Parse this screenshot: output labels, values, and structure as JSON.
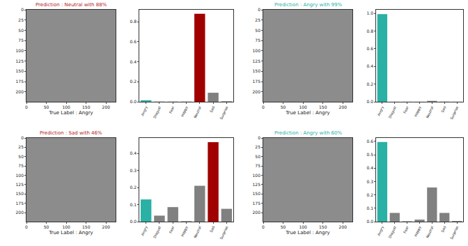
{
  "chart_data": [
    {
      "type": "image",
      "title": "Prediction : Neutral with 88%",
      "color": "#b22222",
      "x_label": "True Label : Angry",
      "xlim": [
        0,
        224
      ],
      "xticks": [
        0,
        50,
        100,
        150,
        200
      ],
      "ylim": [
        224,
        0
      ],
      "yticks": [
        0,
        25,
        50,
        75,
        100,
        125,
        150,
        175,
        200
      ]
    },
    {
      "type": "bar",
      "categories": [
        "Angry",
        "Disgust",
        "Fear",
        "Happy",
        "Neutral",
        "Sad",
        "Surprise"
      ],
      "values": [
        0.015,
        0.002,
        0.002,
        0.002,
        0.88,
        0.09,
        0.005
      ],
      "colors": [
        "#2ab0a4",
        "#808080",
        "#808080",
        "#808080",
        "#a00000",
        "#808080",
        "#808080"
      ],
      "ylim": [
        0,
        0.92
      ],
      "yticks": [
        {
          "value": 0,
          "label": "0.0"
        },
        0.2,
        0.4,
        0.6,
        0.8
      ]
    },
    {
      "type": "image",
      "title": "Prediction : Angry with 99%",
      "color": "#2ab0a4",
      "x_label": "True Label : Angry",
      "xlim": [
        0,
        224
      ],
      "xticks": [
        0,
        50,
        100,
        150,
        200
      ],
      "ylim": [
        224,
        0
      ],
      "yticks": [
        0,
        25,
        50,
        75,
        100,
        125,
        150,
        175,
        200
      ]
    },
    {
      "type": "bar",
      "categories": [
        "Angry",
        "Disgust",
        "Fear",
        "Happy",
        "Neutral",
        "Sad",
        "Surprise"
      ],
      "values": [
        0.99,
        0.001,
        0.001,
        0.001,
        0.01,
        0.002,
        0.001
      ],
      "colors": [
        "#2ab0a4",
        "#808080",
        "#808080",
        "#808080",
        "#808080",
        "#808080",
        "#808080"
      ],
      "ylim": [
        0,
        1.04
      ],
      "yticks": [
        {
          "value": 0,
          "label": "0.0"
        },
        0.2,
        0.4,
        0.6,
        0.8,
        {
          "value": 1,
          "label": "1.0"
        }
      ]
    },
    {
      "type": "image",
      "title": "Prediction : Sad with 46%",
      "color": "#b22222",
      "x_label": "True Label : Angry",
      "xlim": [
        0,
        224
      ],
      "xticks": [
        0,
        50,
        100,
        150,
        200
      ],
      "ylim": [
        224,
        0
      ],
      "yticks": [
        0,
        25,
        50,
        75,
        100,
        125,
        150,
        175,
        200
      ]
    },
    {
      "type": "bar",
      "categories": [
        "Angry",
        "Disgust",
        "Fear",
        "Happy",
        "Neutral",
        "Sad",
        "Surprise"
      ],
      "values": [
        0.13,
        0.035,
        0.085,
        0.003,
        0.21,
        0.465,
        0.075
      ],
      "colors": [
        "#2ab0a4",
        "#808080",
        "#808080",
        "#808080",
        "#808080",
        "#a00000",
        "#808080"
      ],
      "ylim": [
        0,
        0.49
      ],
      "yticks": [
        {
          "value": 0,
          "label": "0.0"
        },
        0.1,
        0.2,
        0.3,
        0.4
      ]
    },
    {
      "type": "image",
      "title": "Prediction : Angry with 60%",
      "color": "#2ab0a4",
      "x_label": "True Label : Angry",
      "xlim": [
        0,
        224
      ],
      "xticks": [
        0,
        50,
        100,
        150,
        200
      ],
      "ylim": [
        224,
        0
      ],
      "yticks": [
        0,
        25,
        50,
        75,
        100,
        125,
        150,
        175,
        200
      ]
    },
    {
      "type": "bar",
      "categories": [
        "Angry",
        "Disgust",
        "Fear",
        "Happy",
        "Neutral",
        "Sad",
        "Surprise"
      ],
      "values": [
        0.595,
        0.065,
        0.003,
        0.015,
        0.255,
        0.065,
        0.005
      ],
      "colors": [
        "#2ab0a4",
        "#808080",
        "#808080",
        "#808080",
        "#808080",
        "#808080",
        "#808080"
      ],
      "ylim": [
        0,
        0.625
      ],
      "yticks": [
        {
          "value": 0,
          "label": "0.0"
        },
        0.1,
        0.2,
        0.3,
        0.4,
        0.5,
        0.6
      ]
    }
  ]
}
